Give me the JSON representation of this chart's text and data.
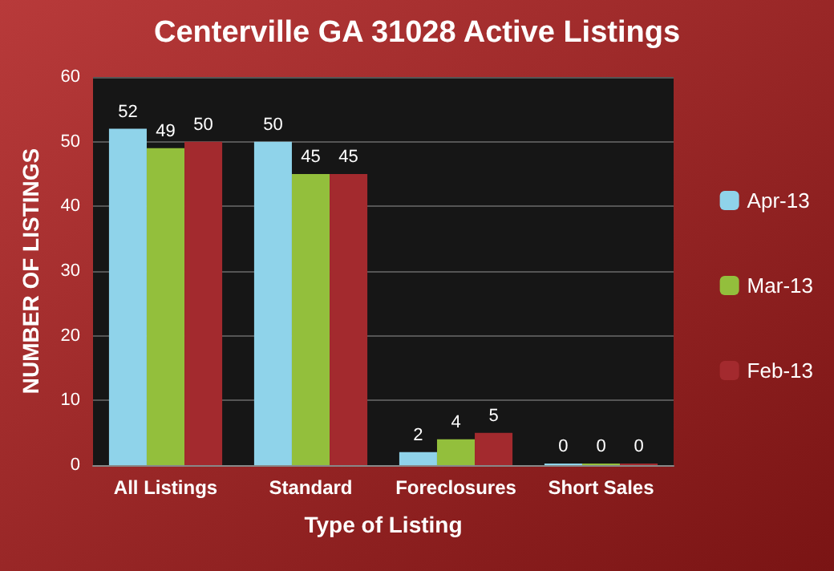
{
  "chart_data": {
    "type": "bar",
    "title": "Centerville GA 31028 Active Listings",
    "xlabel": "Type of Listing",
    "ylabel": "NUMBER OF LISTINGS",
    "categories": [
      "All Listings",
      "Standard",
      "Foreclosures",
      "Short Sales"
    ],
    "series": [
      {
        "name": "Apr-13",
        "color": "#8fd3ea",
        "values": [
          52,
          50,
          2,
          0
        ]
      },
      {
        "name": "Mar-13",
        "color": "#93bf3c",
        "values": [
          49,
          45,
          4,
          0
        ]
      },
      {
        "name": "Feb-13",
        "color": "#a32a2e",
        "values": [
          50,
          45,
          5,
          0
        ]
      }
    ],
    "ylim": [
      0,
      60
    ],
    "yticks": [
      0,
      10,
      20,
      30,
      40,
      50,
      60
    ],
    "grid": "y",
    "legend": "right",
    "data_labels": true
  }
}
